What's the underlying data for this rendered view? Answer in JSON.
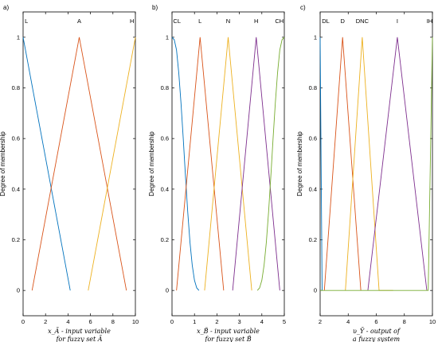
{
  "chart_data": [
    {
      "type": "line",
      "panel": "a)",
      "ylabel": "Degree of membership",
      "xlabel_lines": [
        "x_Ã - input variable",
        "for fuzzy set Ã"
      ],
      "xlim": [
        0,
        10
      ],
      "ylim": [
        -0.1,
        1.1
      ],
      "xticks": [
        0,
        2,
        4,
        6,
        8,
        10
      ],
      "yticks": [
        0,
        0.2,
        0.4,
        0.6,
        0.8,
        1
      ],
      "series": [
        {
          "name": "L",
          "color": "#0072BD",
          "x": [
            0,
            4.2
          ],
          "y": [
            1,
            0
          ],
          "label_x": 0.3
        },
        {
          "name": "A",
          "color": "#D95319",
          "x": [
            0.8,
            5,
            9.2
          ],
          "y": [
            0,
            1,
            0
          ],
          "label_x": 5
        },
        {
          "name": "H",
          "color": "#EDB120",
          "x": [
            5.8,
            10
          ],
          "y": [
            0,
            1
          ],
          "label_x": 9.7
        }
      ]
    },
    {
      "type": "line",
      "panel": "b)",
      "ylabel": "Degree of membership",
      "xlabel_lines": [
        "x_B̃ - input variable",
        "for fuzzy set B̃"
      ],
      "xlim": [
        0,
        5
      ],
      "ylim": [
        -0.1,
        1.1
      ],
      "xticks": [
        0,
        1,
        2,
        3,
        4,
        5
      ],
      "yticks": [
        0,
        0.2,
        0.4,
        0.6,
        0.8,
        1
      ],
      "series": [
        {
          "name": "CL",
          "color": "#0072BD",
          "x": [
            0,
            0.1,
            0.2,
            0.3,
            0.4,
            0.5,
            0.6,
            0.7,
            0.8,
            0.9,
            1.0,
            1.1,
            1.2
          ],
          "y": [
            1,
            0.99,
            0.95,
            0.86,
            0.74,
            0.6,
            0.45,
            0.31,
            0.19,
            0.1,
            0.04,
            0.01,
            0
          ],
          "label_x": 0.22
        },
        {
          "name": "L",
          "color": "#D95319",
          "x": [
            0.2,
            1.25,
            2.3
          ],
          "y": [
            0,
            1,
            0
          ],
          "label_x": 1.25
        },
        {
          "name": "N",
          "color": "#EDB120",
          "x": [
            1.45,
            2.5,
            3.55
          ],
          "y": [
            0,
            1,
            0
          ],
          "label_x": 2.5
        },
        {
          "name": "H",
          "color": "#7E2F8E",
          "x": [
            2.7,
            3.75,
            4.8
          ],
          "y": [
            0,
            1,
            0
          ],
          "label_x": 3.75
        },
        {
          "name": "CH",
          "color": "#77AC30",
          "x": [
            3.8,
            3.9,
            4.0,
            4.1,
            4.2,
            4.3,
            4.4,
            4.5,
            4.6,
            4.7,
            4.8,
            4.9,
            5.0
          ],
          "y": [
            0,
            0.01,
            0.04,
            0.1,
            0.19,
            0.31,
            0.45,
            0.6,
            0.74,
            0.86,
            0.95,
            0.99,
            1
          ],
          "label_x": 4.78
        }
      ]
    },
    {
      "type": "line",
      "panel": "c)",
      "ylabel": "Degree of membership",
      "xlabel_lines": [
        "υ_Ỹ - output of",
        "a fuzzy system"
      ],
      "xlim": [
        2,
        10
      ],
      "ylim": [
        -0.1,
        1.1
      ],
      "xticks": [
        2,
        4,
        6,
        8,
        10
      ],
      "yticks": [
        0,
        0.2,
        0.4,
        0.6,
        0.8,
        1
      ],
      "series": [
        {
          "name": "DL",
          "color": "#0072BD",
          "x": [
            2,
            2.07,
            2.14
          ],
          "y": [
            1,
            0.5,
            0
          ],
          "label_x": 2.4
        },
        {
          "name": "D",
          "color": "#D95319",
          "x": [
            2.3,
            3.6,
            4.9
          ],
          "y": [
            0,
            1,
            0
          ],
          "label_x": 3.6
        },
        {
          "name": "DNC",
          "color": "#EDB120",
          "x": [
            3.8,
            5.0,
            6.2,
            7.2
          ],
          "y": [
            0,
            1,
            0,
            0
          ],
          "label_x": 5.0
        },
        {
          "name": "I",
          "color": "#7E2F8E",
          "x": [
            5.4,
            7.5,
            9.6
          ],
          "y": [
            0,
            1,
            0
          ],
          "label_x": 7.5
        },
        {
          "name": "IH",
          "color": "#77AC30",
          "x": [
            2,
            9.7,
            9.85,
            10
          ],
          "y": [
            0,
            0,
            0.5,
            1
          ],
          "label_x": 9.8
        }
      ]
    }
  ]
}
